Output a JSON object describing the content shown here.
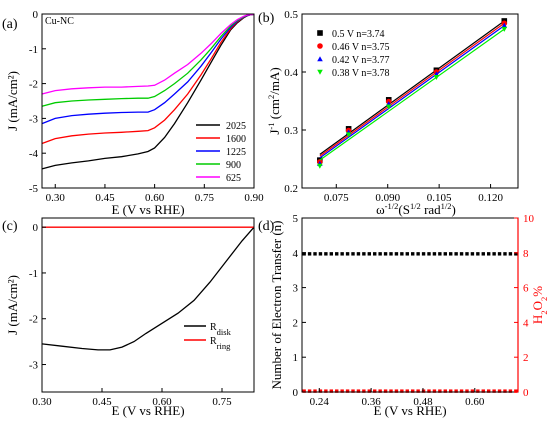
{
  "chart_data": [
    {
      "id": "a",
      "type": "line",
      "panel_label": "(a)",
      "annotation": "Cu-NC",
      "xlabel": "E (V vs RHE)",
      "ylabel": "J (mA/cm²)",
      "xlim": [
        0.26,
        0.9
      ],
      "ylim": [
        -5,
        0
      ],
      "xticks": [
        0.3,
        0.45,
        0.6,
        0.75,
        0.9
      ],
      "xticklabels": [
        "0.30",
        "0.45",
        "0.60",
        "0.75",
        "0.90"
      ],
      "yticks": [
        0,
        -1,
        -2,
        -3,
        -4,
        -5
      ],
      "yticklabels": [
        "0",
        "-1",
        "-2",
        "-3",
        "-4",
        "-5"
      ],
      "legend_position": "bottom-right",
      "series": [
        {
          "name": "2025",
          "color": "#000000",
          "x": [
            0.26,
            0.3,
            0.35,
            0.4,
            0.45,
            0.5,
            0.55,
            0.58,
            0.6,
            0.63,
            0.66,
            0.7,
            0.74,
            0.77,
            0.8,
            0.83,
            0.85,
            0.87,
            0.88,
            0.89,
            0.9
          ],
          "y": [
            -4.45,
            -4.35,
            -4.28,
            -4.22,
            -4.15,
            -4.1,
            -4.02,
            -3.95,
            -3.85,
            -3.55,
            -3.15,
            -2.55,
            -1.9,
            -1.4,
            -0.9,
            -0.45,
            -0.25,
            -0.1,
            -0.05,
            -0.02,
            -0.01
          ]
        },
        {
          "name": "1600",
          "color": "#ff0000",
          "x": [
            0.26,
            0.3,
            0.35,
            0.4,
            0.45,
            0.5,
            0.55,
            0.58,
            0.6,
            0.63,
            0.66,
            0.7,
            0.74,
            0.77,
            0.8,
            0.83,
            0.85,
            0.87,
            0.88,
            0.89,
            0.9
          ],
          "y": [
            -3.72,
            -3.58,
            -3.5,
            -3.45,
            -3.42,
            -3.4,
            -3.37,
            -3.35,
            -3.27,
            -3.05,
            -2.75,
            -2.3,
            -1.75,
            -1.3,
            -0.82,
            -0.42,
            -0.22,
            -0.09,
            -0.04,
            -0.02,
            -0.01
          ]
        },
        {
          "name": "1225",
          "color": "#0000ff",
          "x": [
            0.26,
            0.3,
            0.35,
            0.4,
            0.45,
            0.5,
            0.55,
            0.58,
            0.6,
            0.63,
            0.66,
            0.7,
            0.74,
            0.77,
            0.8,
            0.83,
            0.85,
            0.87,
            0.88,
            0.89,
            0.9
          ],
          "y": [
            -3.15,
            -3.0,
            -2.92,
            -2.88,
            -2.85,
            -2.83,
            -2.82,
            -2.82,
            -2.75,
            -2.55,
            -2.3,
            -1.95,
            -1.5,
            -1.12,
            -0.72,
            -0.38,
            -0.2,
            -0.08,
            -0.04,
            -0.02,
            -0.01
          ]
        },
        {
          "name": "900",
          "color": "#00cc00",
          "x": [
            0.26,
            0.3,
            0.35,
            0.4,
            0.45,
            0.5,
            0.55,
            0.58,
            0.6,
            0.63,
            0.66,
            0.7,
            0.74,
            0.77,
            0.8,
            0.83,
            0.85,
            0.87,
            0.88,
            0.89,
            0.9
          ],
          "y": [
            -2.65,
            -2.55,
            -2.5,
            -2.47,
            -2.45,
            -2.43,
            -2.42,
            -2.42,
            -2.37,
            -2.2,
            -2.0,
            -1.7,
            -1.32,
            -1.0,
            -0.65,
            -0.34,
            -0.18,
            -0.07,
            -0.03,
            -0.02,
            -0.01
          ]
        },
        {
          "name": "625",
          "color": "#ff00ff",
          "x": [
            0.26,
            0.3,
            0.35,
            0.4,
            0.45,
            0.5,
            0.55,
            0.58,
            0.6,
            0.63,
            0.66,
            0.7,
            0.74,
            0.77,
            0.8,
            0.83,
            0.85,
            0.87,
            0.88,
            0.89,
            0.9
          ],
          "y": [
            -2.3,
            -2.2,
            -2.15,
            -2.12,
            -2.1,
            -2.1,
            -2.08,
            -2.07,
            -2.05,
            -1.9,
            -1.7,
            -1.45,
            -1.13,
            -0.86,
            -0.56,
            -0.3,
            -0.16,
            -0.06,
            -0.03,
            -0.02,
            -0.01
          ]
        }
      ]
    },
    {
      "id": "b",
      "type": "scatter",
      "panel_label": "(b)",
      "xlabel": "ω^-1/2 (S^1/2 rad^1/2)",
      "xlabel_parts": [
        "ω",
        "-1/2",
        "(S",
        "1/2",
        " rad",
        "1/2",
        ")"
      ],
      "ylabel": "J^-1 (cm²/mA)",
      "ylabel_parts": [
        "J",
        "-1",
        " (cm",
        "2",
        "/mA)"
      ],
      "xlim": [
        0.065,
        0.128
      ],
      "ylim": [
        0.2,
        0.5
      ],
      "xticks": [
        0.075,
        0.09,
        0.105,
        0.12
      ],
      "xticklabels": [
        "0.075",
        "0.090",
        "0.105",
        "0.120"
      ],
      "yticks": [
        0.2,
        0.3,
        0.4,
        0.5
      ],
      "yticklabels": [
        "0.2",
        "0.3",
        "0.4",
        "0.5"
      ],
      "legend_position": "top-left",
      "series": [
        {
          "name": "0.5 V  n=3.74",
          "color": "#000000",
          "marker": "square",
          "x": [
            0.0702,
            0.0786,
            0.0903,
            0.1042,
            0.124
          ],
          "y": [
            0.248,
            0.302,
            0.352,
            0.403,
            0.488
          ],
          "fit": [
            [
              0.0702,
              0.258
            ],
            [
              0.124,
              0.488
            ]
          ]
        },
        {
          "name": "0.46 V  n=3.75",
          "color": "#ff0000",
          "marker": "circle",
          "x": [
            0.0702,
            0.0786,
            0.0903,
            0.1042,
            0.124
          ],
          "y": [
            0.245,
            0.299,
            0.349,
            0.4,
            0.484
          ],
          "fit": [
            [
              0.0702,
              0.255
            ],
            [
              0.124,
              0.484
            ]
          ]
        },
        {
          "name": "0.42 V  n=3.77",
          "color": "#0000ff",
          "marker": "triangle-up",
          "x": [
            0.0702,
            0.0786,
            0.0903,
            0.1042,
            0.124
          ],
          "y": [
            0.242,
            0.296,
            0.345,
            0.396,
            0.48
          ],
          "fit": [
            [
              0.0702,
              0.252
            ],
            [
              0.124,
              0.48
            ]
          ]
        },
        {
          "name": "0.38 V  n=3.78",
          "color": "#00ee00",
          "marker": "triangle-down",
          "x": [
            0.0702,
            0.0786,
            0.0903,
            0.1042,
            0.124
          ],
          "y": [
            0.238,
            0.292,
            0.34,
            0.391,
            0.474
          ],
          "fit": [
            [
              0.0702,
              0.248
            ],
            [
              0.124,
              0.474
            ]
          ]
        }
      ]
    },
    {
      "id": "c",
      "type": "line",
      "panel_label": "(c)",
      "xlabel": "E (V vs RHE)",
      "ylabel": "J (mA/cm²)",
      "xlim": [
        0.3,
        0.83
      ],
      "ylim": [
        -3.6,
        0.2
      ],
      "xticks": [
        0.3,
        0.45,
        0.6,
        0.75
      ],
      "xticklabels": [
        "0.30",
        "0.45",
        "0.60",
        "0.75"
      ],
      "yticks": [
        0,
        -1,
        -2,
        -3
      ],
      "yticklabels": [
        "0",
        "-1",
        "-2",
        "-3"
      ],
      "legend_position": "bottom-right",
      "series": [
        {
          "name": "R_disk",
          "label_main": "R",
          "label_sub": "disk",
          "color": "#000000",
          "x": [
            0.3,
            0.35,
            0.4,
            0.44,
            0.47,
            0.5,
            0.53,
            0.56,
            0.6,
            0.64,
            0.68,
            0.72,
            0.76,
            0.8,
            0.83
          ],
          "y": [
            -2.55,
            -2.6,
            -2.65,
            -2.68,
            -2.68,
            -2.62,
            -2.5,
            -2.32,
            -2.1,
            -1.88,
            -1.6,
            -1.2,
            -0.75,
            -0.3,
            0.0
          ]
        },
        {
          "name": "R_ring",
          "label_main": "R",
          "label_sub": "ring",
          "color": "#ff0000",
          "x": [
            0.3,
            0.83
          ],
          "y": [
            0.0,
            0.0
          ]
        }
      ]
    },
    {
      "id": "d",
      "type": "scatter",
      "panel_label": "(d)",
      "xlabel": "E (V vs RHE)",
      "ylabel": "Number of  Electron Transfer (n)",
      "ylabel_right": "H2O2%",
      "ylabel_right_parts": [
        "H",
        "2",
        "O",
        "2",
        "%"
      ],
      "right_axis_color": "#ff0000",
      "xlim": [
        0.2,
        0.7
      ],
      "ylim": [
        0,
        5
      ],
      "ylim_right": [
        0,
        10
      ],
      "xticks": [
        0.24,
        0.36,
        0.48,
        0.6
      ],
      "xticklabels": [
        "0.24",
        "0.36",
        "0.48",
        "0.60"
      ],
      "yticks": [
        0,
        1,
        2,
        3,
        4,
        5
      ],
      "yticklabels": [
        "0",
        "1",
        "2",
        "3",
        "4",
        "5"
      ],
      "yticks_right": [
        0,
        2,
        4,
        6,
        8,
        10
      ],
      "yticklabels_right": [
        "0",
        "2",
        "4",
        "6",
        "8",
        "10"
      ],
      "series": [
        {
          "name": "n",
          "axis": "left",
          "color": "#000000",
          "marker": "square",
          "x_start": 0.205,
          "x_end": 0.695,
          "count": 40,
          "value": 3.97
        },
        {
          "name": "H2O2%",
          "axis": "right",
          "color": "#ff0000",
          "marker": "square",
          "x_start": 0.205,
          "x_end": 0.695,
          "count": 40,
          "value": 0.05
        }
      ]
    }
  ]
}
